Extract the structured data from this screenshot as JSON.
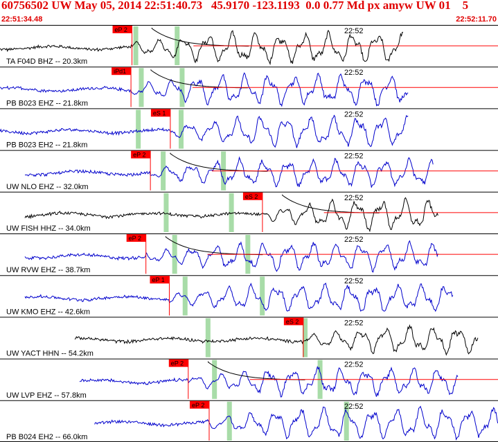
{
  "event": {
    "header": "60756502 UW May 05, 2014 22:51:40.73   45.9170 -123.1193  0.0 0.77 Md px amyw UW 01    5",
    "start_time": "22:51:34.48",
    "end_time": "22:52:11.70"
  },
  "time_marker": "22:52",
  "colors": {
    "title": "#e00000",
    "pick_flag": "#ff0000",
    "pick_window": "#a8dca8",
    "trace_blue": "#0000cc",
    "trace_black": "#000000",
    "coda_curve": "#000000",
    "coda_fit": "#ff0000",
    "divider": "#000000"
  },
  "traces": [
    {
      "label": "TA F04D BHZ -- 20.3km",
      "color": "black",
      "start": 0.0,
      "end": 0.81,
      "amp": 1.0,
      "picks": [
        {
          "text": "eP 2",
          "t": 0.265
        }
      ],
      "windows": [
        0.272,
        0.355
      ],
      "coda": true
    },
    {
      "label": "PB B023 EHZ -- 21.8km",
      "color": "blue",
      "start": 0.0,
      "end": 0.82,
      "amp": 1.0,
      "picks": [
        {
          "text": "iPd1",
          "t": 0.263
        }
      ],
      "windows": [
        0.283,
        0.365
      ],
      "coda": true
    },
    {
      "label": "PB B023 EH2 -- 21.8km",
      "color": "blue",
      "start": 0.0,
      "end": 0.82,
      "amp": 1.0,
      "picks": [
        {
          "text": "eS 1",
          "t": 0.342
        }
      ],
      "windows": [
        0.277,
        0.363
      ],
      "coda": false
    },
    {
      "label": "UW NLO EHZ -- 32.0km",
      "color": "blue",
      "start": 0.05,
      "end": 0.87,
      "amp": 0.9,
      "picks": [
        {
          "text": "eP 2",
          "t": 0.302
        }
      ],
      "windows": [
        0.327,
        0.448
      ],
      "coda": true
    },
    {
      "label": "UW FISH HHZ -- 34.0km",
      "color": "black",
      "start": 0.05,
      "end": 0.88,
      "amp": 1.0,
      "picks": [
        {
          "text": "eS 2",
          "t": 0.527
        }
      ],
      "windows": [
        0.333,
        0.464
      ],
      "coda": true
    },
    {
      "label": "UW RVW EHZ -- 38.7km",
      "color": "blue",
      "start": 0.05,
      "end": 0.88,
      "amp": 0.9,
      "picks": [
        {
          "text": "eP 2",
          "t": 0.293
        }
      ],
      "windows": [
        0.35,
        0.497
      ],
      "coda": true
    },
    {
      "label": "UW KMO EHZ -- 42.6km",
      "color": "blue",
      "start": 0.05,
      "end": 0.91,
      "amp": 0.9,
      "picks": [
        {
          "text": "eP 1",
          "t": 0.34
        }
      ],
      "windows": [
        0.371,
        0.526
      ],
      "coda": false
    },
    {
      "label": "UW YACT HHN -- 54.2km",
      "color": "black",
      "start": 0.15,
      "end": 0.96,
      "amp": 0.9,
      "picks": [
        {
          "text": "eS 2",
          "t": 0.609
        }
      ],
      "windows": [
        0.417,
        0.612
      ],
      "coda": false
    },
    {
      "label": "UW LVP EHZ -- 57.8km",
      "color": "blue",
      "start": 0.16,
      "end": 0.92,
      "amp": 0.9,
      "picks": [
        {
          "text": "eP 2",
          "t": 0.378
        }
      ],
      "windows": [
        0.43,
        0.642
      ],
      "coda": true
    },
    {
      "label": "PB B024 EH2 -- 66.0km",
      "color": "blue",
      "start": 0.19,
      "end": 1.0,
      "amp": 1.0,
      "picks": [
        {
          "text": "eP 2",
          "t": 0.42
        }
      ],
      "windows": [
        0.46,
        0.695
      ],
      "coda": false
    }
  ]
}
